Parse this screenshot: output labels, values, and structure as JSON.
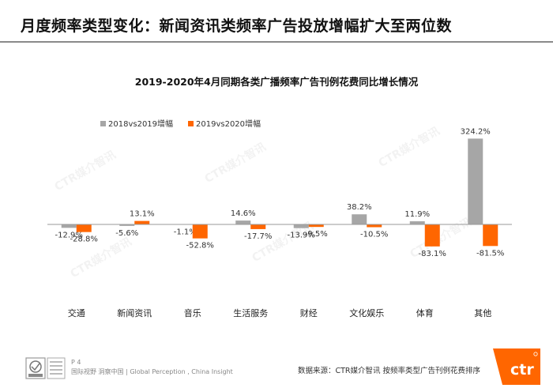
{
  "header": {
    "title": "月度频率类型变化：新闻资讯类频率广告投放增幅扩大至两位数"
  },
  "footer": {
    "page": "P 4",
    "tagline": "国际视野  洞察中国  |  Global Perception , China Insight",
    "source": "数据来源：CTR媒介智讯   按频率类型广告刊例花费排序",
    "cert_logo": "certification-badge-icon",
    "brand_logo": "ctr-logo-icon"
  },
  "watermark": "CTR媒介智讯",
  "colors": {
    "series_2019": "#a6a6a6",
    "series_2020": "#ff6600",
    "axis": "#9a9a9a"
  },
  "chart_data": {
    "type": "bar",
    "title": "2019-2020年4月同期各类广播频率广告刊例花费同比增长情况",
    "xlabel": "",
    "ylabel": "",
    "legend_position": "top-left",
    "grid": false,
    "categories": [
      "交通",
      "新闻资讯",
      "音乐",
      "生活服务",
      "财经",
      "文化娱乐",
      "体育",
      "其他"
    ],
    "series": [
      {
        "name": "2018vs2019增幅",
        "values": [
          -12.9,
          -5.6,
          -1.1,
          14.6,
          -13.9,
          38.2,
          11.9,
          324.2
        ],
        "labels": [
          "-12.9%",
          "-5.6%",
          "-1.1%",
          "14.6%",
          "-13.9%",
          "38.2%",
          "11.9%",
          "324.2%"
        ]
      },
      {
        "name": "2019vs2020增幅",
        "values": [
          -28.8,
          13.1,
          -52.8,
          -17.7,
          -9.5,
          -10.5,
          -83.1,
          -81.5
        ],
        "labels": [
          "-28.8%",
          "13.1%",
          "-52.8%",
          "-17.7%",
          "-9.5%",
          "-10.5%",
          "-83.1%",
          "-81.5%"
        ]
      }
    ]
  }
}
